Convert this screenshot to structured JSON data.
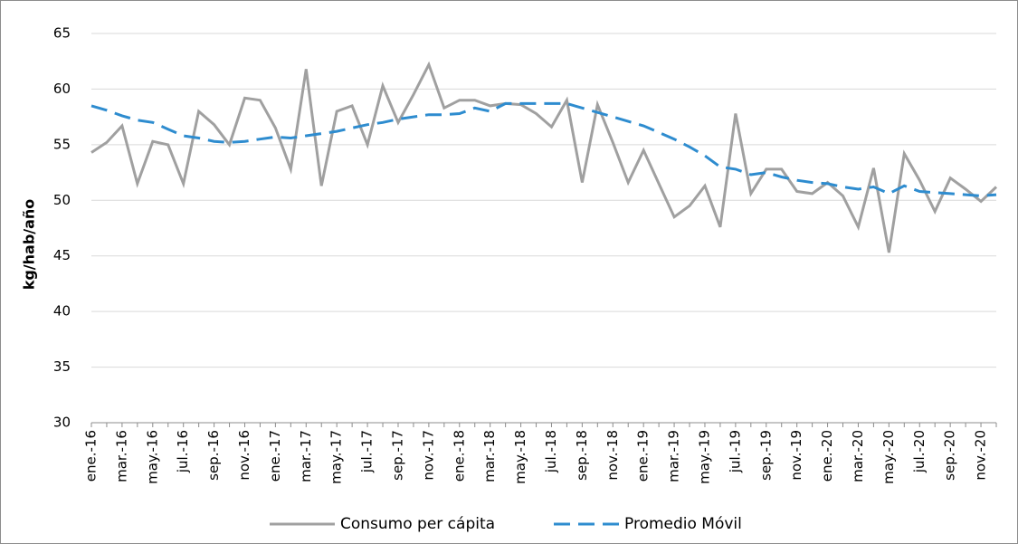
{
  "chart_data": {
    "type": "line",
    "ylabel": "kg/hab/año",
    "categories": [
      "ene.-16",
      null,
      "mar.-16",
      null,
      "may.-16",
      null,
      "jul.-16",
      null,
      "sep.-16",
      null,
      "nov.-16",
      null,
      "ene.-17",
      null,
      "mar.-17",
      null,
      "may.-17",
      null,
      "jul.-17",
      null,
      "sep.-17",
      null,
      "nov.-17",
      null,
      "ene.-18",
      null,
      "mar.-18",
      null,
      "may.-18",
      null,
      "jul.-18",
      null,
      "sep.-18",
      null,
      "nov.-18",
      null,
      "ene.-19",
      null,
      "mar.-19",
      null,
      "may.-19",
      null,
      "jul.-19",
      null,
      "sep.-19",
      null,
      "nov.-19",
      null,
      "ene.-20",
      null,
      "mar.-20",
      null,
      "may.-20",
      null,
      "jul.-20",
      null,
      "sep.-20",
      null,
      "nov.-20",
      null
    ],
    "series": [
      {
        "name": "Consumo per cápita",
        "color": "#a0a0a0",
        "dash": false,
        "values": [
          54.3,
          55.2,
          56.7,
          51.5,
          55.3,
          55.0,
          51.5,
          58.0,
          56.8,
          55.0,
          59.2,
          59.0,
          56.5,
          52.8,
          61.8,
          51.3,
          58.0,
          58.5,
          55.0,
          60.3,
          57.0,
          59.5,
          62.2,
          58.3,
          59.0,
          59.0,
          58.5,
          58.7,
          58.6,
          57.8,
          56.6,
          59.0,
          51.6,
          58.6,
          55.2,
          51.6,
          54.5,
          51.5,
          48.5,
          49.5,
          51.3,
          47.6,
          57.8,
          50.6,
          52.8,
          52.8,
          50.8,
          50.6,
          51.6,
          50.4,
          47.6,
          52.9,
          45.3,
          54.2,
          51.8,
          49.0,
          52.0,
          51.0,
          49.9,
          51.2
        ]
      },
      {
        "name": "Promedio Móvil",
        "color": "#2e8ccf",
        "dash": true,
        "values": [
          58.5,
          58.1,
          57.6,
          57.2,
          57.0,
          56.4,
          55.8,
          55.6,
          55.3,
          55.2,
          55.3,
          55.5,
          55.7,
          55.6,
          55.8,
          56.0,
          56.2,
          56.5,
          56.8,
          57.0,
          57.3,
          57.5,
          57.7,
          57.7,
          57.8,
          58.3,
          58.0,
          58.7,
          58.7,
          58.7,
          58.7,
          58.7,
          58.3,
          57.9,
          57.5,
          57.1,
          56.7,
          56.1,
          55.5,
          54.8,
          54.0,
          53.0,
          52.8,
          52.3,
          52.5,
          52.1,
          51.8,
          51.6,
          51.5,
          51.2,
          51.0,
          51.2,
          50.6,
          51.3,
          50.8,
          50.7,
          50.6,
          50.5,
          50.4,
          50.5
        ]
      }
    ],
    "ylim": [
      30,
      65
    ],
    "yticks": [
      30,
      35,
      40,
      45,
      50,
      55,
      60,
      65
    ],
    "grid": true
  }
}
